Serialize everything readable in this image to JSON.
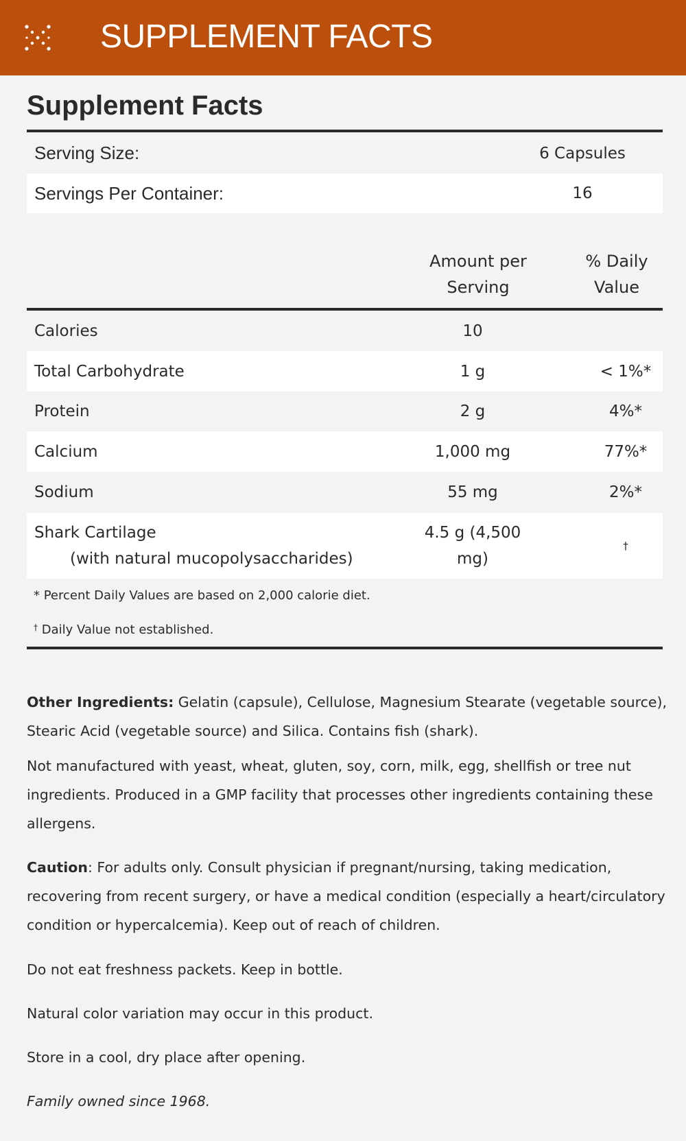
{
  "header": {
    "title": "SUPPLEMENT FACTS",
    "icon": "dotted-x-icon",
    "color": "#bd4f0c"
  },
  "facts": {
    "title": "Supplement Facts",
    "serving_size_label": "Serving Size:",
    "serving_size_value": "6 Capsules",
    "servings_label": "Servings Per Container:",
    "servings_value": "16",
    "col_amount": "Amount per Serving",
    "col_dv": "% Daily Value",
    "rows": [
      {
        "name": "Calories",
        "amount": "10",
        "dv": ""
      },
      {
        "name": "Total Carbohydrate",
        "amount": "1 g",
        "dv": "< 1%*"
      },
      {
        "name": "Protein",
        "amount": "2 g",
        "dv": "4%*"
      },
      {
        "name": "Calcium",
        "amount": "1,000 mg",
        "dv": "77%*"
      },
      {
        "name": "Sodium",
        "amount": "55 mg",
        "dv": "2%*"
      },
      {
        "name": "Shark Cartilage",
        "sub": "(with natural mucopolysaccharides)",
        "amount": "4.5 g (4,500 mg)",
        "dv": "†"
      }
    ],
    "footnote1": "* Percent Daily Values are based on 2,000 calorie diet.",
    "footnote2_mark": "†",
    "footnote2": " Daily Value not established."
  },
  "info": {
    "other_label": "Other Ingredients:",
    "other_text": " Gelatin (capsule), Cellulose, Magnesium Stearate (vegetable source), Stearic Acid (vegetable source) and Silica. Contains fish (shark).",
    "allergen": "Not manufactured with yeast, wheat, gluten, soy, corn, milk, egg, shellfish or tree nut ingredients. Produced in a GMP facility that processes other ingredients containing these allergens.",
    "caution_label": "Caution",
    "caution_text": ": For adults only. Consult physician if pregnant/nursing, taking medication, recovering from recent surgery, or have a medical condition (especially a heart/circulatory condition or hypercalcemia). Keep out of reach of children.",
    "packets": "Do not eat freshness packets. Keep in bottle.",
    "color": "Natural color variation may occur in this product.",
    "store": "Store in a cool, dry place after opening.",
    "family": "Family owned since 1968."
  }
}
